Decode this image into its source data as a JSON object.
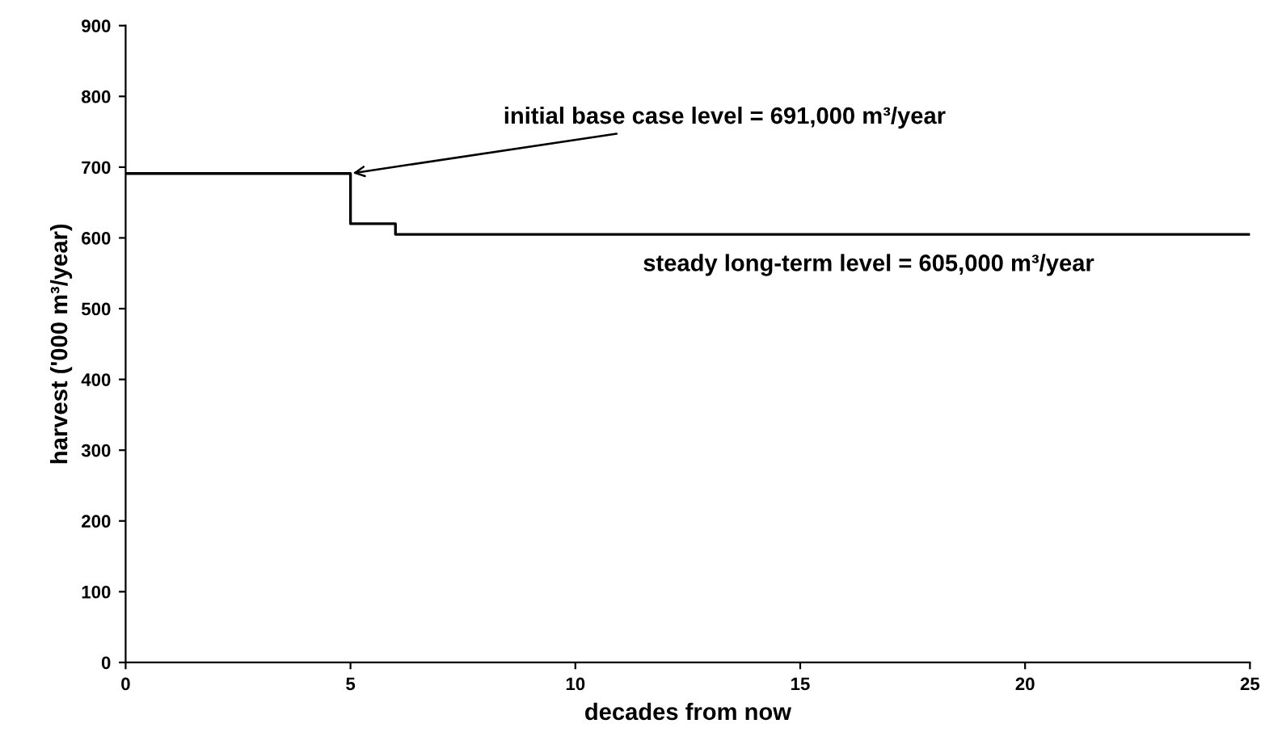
{
  "chart_data": {
    "type": "step",
    "xlabel": "decades from now",
    "ylabel": "harvest ('000 m³/year)",
    "x": [
      0,
      5,
      6,
      25
    ],
    "series": [
      {
        "color": "#000000",
        "values": [
          691,
          620,
          605,
          605
        ]
      }
    ],
    "xlim": [
      0,
      25
    ],
    "xticks": [
      0,
      5,
      10,
      15,
      20,
      25
    ],
    "ylim": [
      0,
      900
    ],
    "yticks": [
      0,
      100,
      200,
      300,
      400,
      500,
      600,
      700,
      800,
      900
    ],
    "grid": false,
    "legend": false,
    "marker": "none",
    "line_style": "solid",
    "annotations": [
      {
        "text": "initial base case level = 691,000 m³/year",
        "x": 5,
        "y": 691
      },
      {
        "text": "steady long-term level = 605,000 m³/year",
        "x": 11.5,
        "y": 605
      }
    ]
  }
}
